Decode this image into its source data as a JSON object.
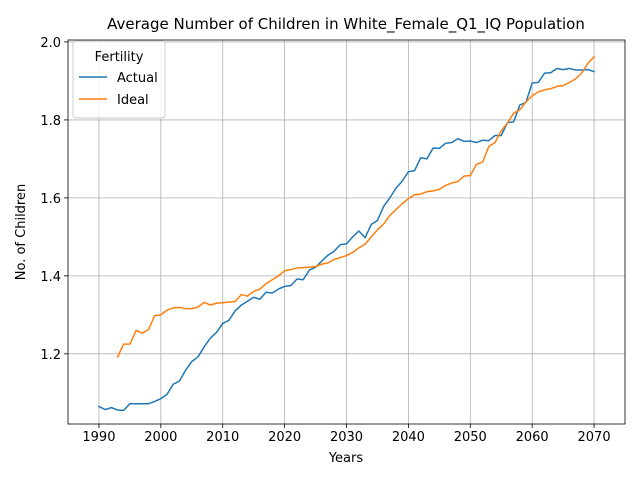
{
  "chart_data": {
    "type": "line",
    "title": "Average Number of Children in White_Female_Q1_IQ Population",
    "xlabel": "Years",
    "ylabel": "No. of Children",
    "xlim": [
      1985,
      2075
    ],
    "ylim": [
      1.02,
      2.005
    ],
    "xticks": [
      1990,
      2000,
      2010,
      2020,
      2030,
      2040,
      2050,
      2060,
      2070
    ],
    "yticks": [
      1.2,
      1.4,
      1.6,
      1.8,
      2.0
    ],
    "ytick_labels": [
      "1.2",
      "1.4",
      "1.6",
      "1.8",
      "2.0"
    ],
    "grid": true,
    "legend": {
      "title": "Fertility",
      "placement": "upper-left"
    },
    "series": [
      {
        "name": "Actual",
        "color": "#1f77b4",
        "x": [
          1990,
          1991,
          1992,
          1993,
          1994,
          1995,
          1996,
          1997,
          1998,
          1999,
          2000,
          2001,
          2002,
          2003,
          2004,
          2005,
          2006,
          2007,
          2008,
          2009,
          2010,
          2011,
          2012,
          2013,
          2014,
          2015,
          2016,
          2017,
          2018,
          2019,
          2020,
          2021,
          2022,
          2023,
          2024,
          2025,
          2026,
          2027,
          2028,
          2029,
          2030,
          2031,
          2032,
          2033,
          2034,
          2035,
          2036,
          2037,
          2038,
          2039,
          2040,
          2041,
          2042,
          2043,
          2044,
          2045,
          2046,
          2047,
          2048,
          2049,
          2050,
          2051,
          2052,
          2053,
          2054,
          2055,
          2056,
          2057,
          2058,
          2059,
          2060,
          2061,
          2062,
          2063,
          2064,
          2065,
          2066,
          2067,
          2068,
          2069,
          2070
        ],
        "values": [
          1.065,
          1.057,
          1.062,
          1.056,
          1.055,
          1.072,
          1.072,
          1.072,
          1.072,
          1.078,
          1.085,
          1.096,
          1.122,
          1.13,
          1.158,
          1.18,
          1.192,
          1.218,
          1.24,
          1.255,
          1.278,
          1.286,
          1.31,
          1.325,
          1.335,
          1.345,
          1.34,
          1.358,
          1.356,
          1.366,
          1.373,
          1.375,
          1.392,
          1.39,
          1.415,
          1.422,
          1.438,
          1.453,
          1.463,
          1.48,
          1.482,
          1.5,
          1.515,
          1.498,
          1.532,
          1.542,
          1.578,
          1.6,
          1.625,
          1.643,
          1.667,
          1.67,
          1.703,
          1.7,
          1.728,
          1.727,
          1.74,
          1.742,
          1.752,
          1.745,
          1.746,
          1.742,
          1.748,
          1.747,
          1.76,
          1.76,
          1.793,
          1.795,
          1.838,
          1.845,
          1.895,
          1.896,
          1.92,
          1.921,
          1.932,
          1.929,
          1.932,
          1.928,
          1.928,
          1.929,
          1.924
        ]
      },
      {
        "name": "Ideal",
        "color": "#ff7f0e",
        "x": [
          1993,
          1994,
          1995,
          1996,
          1997,
          1998,
          1999,
          2000,
          2001,
          2002,
          2003,
          2004,
          2005,
          2006,
          2007,
          2008,
          2009,
          2010,
          2011,
          2012,
          2013,
          2014,
          2015,
          2016,
          2017,
          2018,
          2019,
          2020,
          2021,
          2022,
          2023,
          2024,
          2025,
          2026,
          2027,
          2028,
          2029,
          2030,
          2031,
          2032,
          2033,
          2034,
          2035,
          2036,
          2037,
          2038,
          2039,
          2040,
          2041,
          2042,
          2043,
          2044,
          2045,
          2046,
          2047,
          2048,
          2049,
          2050,
          2051,
          2052,
          2053,
          2054,
          2055,
          2056,
          2057,
          2058,
          2059,
          2060,
          2061,
          2062,
          2063,
          2064,
          2065,
          2066,
          2067,
          2068,
          2069,
          2070
        ],
        "values": [
          1.192,
          1.225,
          1.225,
          1.26,
          1.253,
          1.262,
          1.298,
          1.3,
          1.312,
          1.318,
          1.319,
          1.316,
          1.316,
          1.32,
          1.332,
          1.325,
          1.33,
          1.331,
          1.333,
          1.334,
          1.352,
          1.348,
          1.36,
          1.366,
          1.38,
          1.39,
          1.4,
          1.413,
          1.416,
          1.42,
          1.421,
          1.422,
          1.424,
          1.43,
          1.433,
          1.442,
          1.447,
          1.452,
          1.46,
          1.472,
          1.481,
          1.5,
          1.518,
          1.533,
          1.555,
          1.57,
          1.585,
          1.598,
          1.608,
          1.61,
          1.616,
          1.618,
          1.622,
          1.632,
          1.638,
          1.642,
          1.656,
          1.657,
          1.686,
          1.692,
          1.732,
          1.742,
          1.772,
          1.792,
          1.817,
          1.826,
          1.846,
          1.862,
          1.872,
          1.877,
          1.88,
          1.886,
          1.888,
          1.896,
          1.905,
          1.92,
          1.945,
          1.962
        ]
      }
    ]
  }
}
